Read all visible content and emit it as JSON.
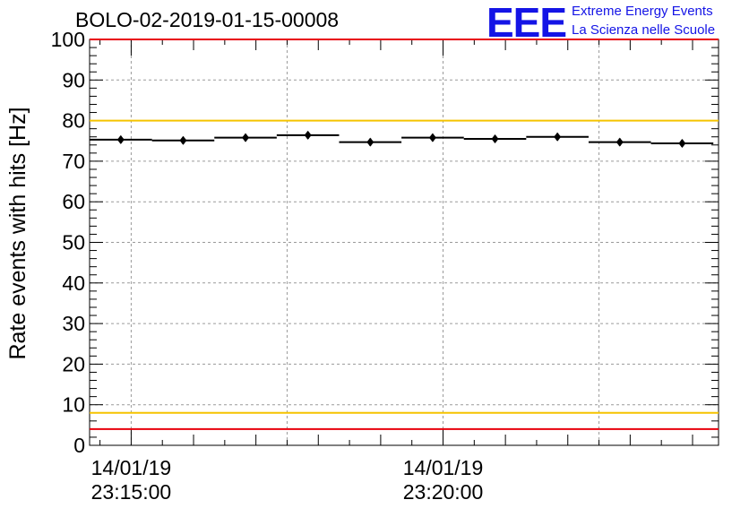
{
  "header": {
    "run_title": "BOLO-02-2019-01-15-00008",
    "logo_text": "EEE",
    "logo_line1": "Extreme Energy Events",
    "logo_line2": "La Scienza nelle Scuole"
  },
  "chart_data": {
    "type": "scatter",
    "title": "BOLO-02-2019-01-15-00008",
    "ylabel": "Rate events with hits [Hz]",
    "xlabel": "",
    "ylim": [
      0,
      100
    ],
    "yticks": [
      0,
      10,
      20,
      30,
      40,
      50,
      60,
      70,
      80,
      90,
      100
    ],
    "xlim": [
      "2019-01-14T23:14:20",
      "2019-01-14T23:24:25"
    ],
    "xticks": [
      {
        "time": "2019-01-14T23:15:00",
        "date": "14/01/19",
        "clock": "23:15:00"
      },
      {
        "time": "2019-01-14T23:20:00",
        "date": "14/01/19",
        "clock": "23:20:00"
      }
    ],
    "grid": true,
    "series": [
      {
        "points": [
          {
            "x": "2019-01-14T23:14:50",
            "y": 75.3
          },
          {
            "x": "2019-01-14T23:15:50",
            "y": 75.1
          },
          {
            "x": "2019-01-14T23:16:50",
            "y": 75.8
          },
          {
            "x": "2019-01-14T23:17:50",
            "y": 76.4
          },
          {
            "x": "2019-01-14T23:18:50",
            "y": 74.7
          },
          {
            "x": "2019-01-14T23:19:50",
            "y": 75.8
          },
          {
            "x": "2019-01-14T23:20:50",
            "y": 75.5
          },
          {
            "x": "2019-01-14T23:21:50",
            "y": 76.0
          },
          {
            "x": "2019-01-14T23:22:50",
            "y": 74.7
          },
          {
            "x": "2019-01-14T23:23:50",
            "y": 74.4
          }
        ],
        "bin_width_seconds": 60,
        "error": 0.9,
        "color": "#000000"
      }
    ],
    "reference_lines": [
      {
        "y": 80,
        "color": "#f5c400"
      },
      {
        "y": 8,
        "color": "#f5c400"
      },
      {
        "y": 100,
        "color": "#e8000b"
      },
      {
        "y": 4,
        "color": "#e8000b"
      }
    ]
  }
}
